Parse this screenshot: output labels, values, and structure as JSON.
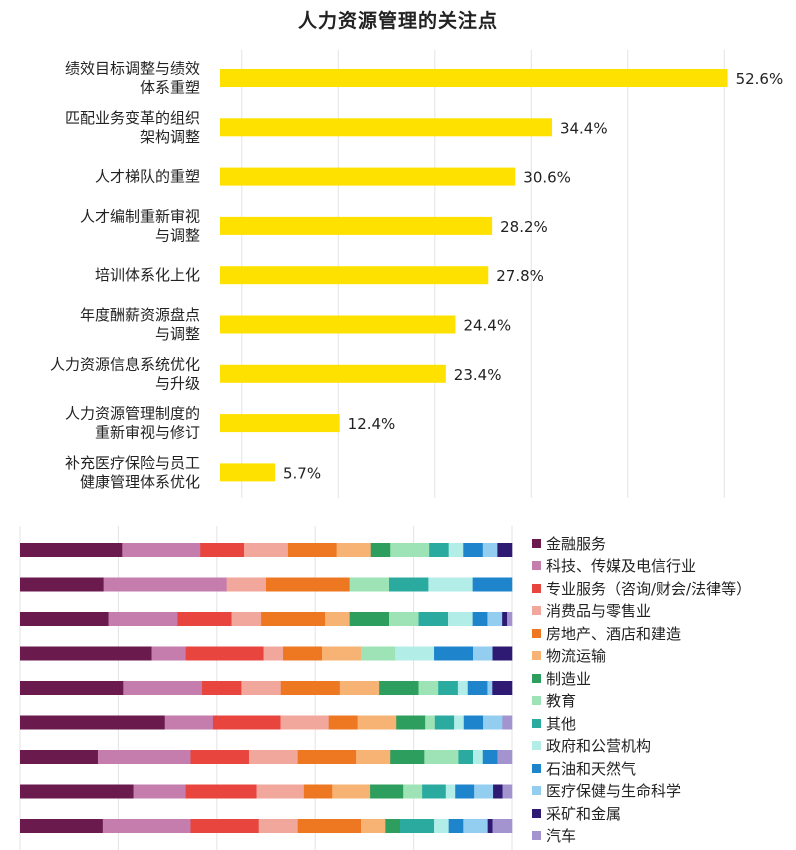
{
  "chart_data": [
    {
      "type": "bar",
      "orientation": "horizontal",
      "title": "人力资源管理的关注点",
      "categories": [
        [
          "绩效目标调整与绩效",
          "体系重塑"
        ],
        [
          "匹配业务变革的组织",
          "架构调整"
        ],
        [
          "人才梯队的重塑"
        ],
        [
          "人才编制重新审视",
          "与调整"
        ],
        [
          "培训体系化上化"
        ],
        [
          "年度酬薪资源盘点",
          "与调整"
        ],
        [
          "人力资源信息系统优化",
          "与升级"
        ],
        [
          "人力资源管理制度的",
          "重新审视与修订"
        ],
        [
          "补充医疗保险与员工",
          "健康管理体系优化"
        ]
      ],
      "values": [
        52.6,
        34.4,
        30.6,
        28.2,
        27.8,
        24.4,
        23.4,
        12.4,
        5.7
      ],
      "value_labels": [
        "52.6%",
        "34.4%",
        "30.6%",
        "28.2%",
        "27.8%",
        "24.4%",
        "23.4%",
        "12.4%",
        "5.7%"
      ],
      "xlim": [
        0,
        60
      ],
      "grid": true,
      "bar_color": "#FFE100"
    },
    {
      "type": "bar",
      "orientation": "horizontal",
      "stacked": true,
      "normalized": true,
      "row_count": 9,
      "legend_position": "right",
      "grid": true,
      "series": [
        {
          "name": "金融服务",
          "color": "#6B1A4E",
          "values": [
            21,
            17,
            18,
            27,
            21,
            30,
            16,
            24,
            17
          ]
        },
        {
          "name": "科技、传媒及电信行业",
          "color": "#C57DAE",
          "values": [
            16,
            25,
            14,
            7,
            16,
            10,
            19,
            11,
            18
          ]
        },
        {
          "name": "专业服务（咨询/财会/法律等）",
          "color": "#E8453E",
          "values": [
            9,
            0,
            11,
            16,
            8,
            14,
            12,
            15,
            14
          ]
        },
        {
          "name": "消费品与零售业",
          "color": "#F2A79C",
          "values": [
            9,
            8,
            6,
            4,
            8,
            10,
            10,
            10,
            8
          ]
        },
        {
          "name": "房地产、酒店和建造",
          "color": "#EE7722",
          "values": [
            10,
            17,
            13,
            8,
            12,
            6,
            12,
            6,
            13
          ]
        },
        {
          "name": "物流运输",
          "color": "#F6B373",
          "values": [
            7,
            0,
            5,
            8,
            8,
            8,
            7,
            8,
            5
          ]
        },
        {
          "name": "制造业",
          "color": "#2E9E5E",
          "values": [
            4,
            0,
            8,
            0,
            8,
            6,
            7,
            7,
            3
          ]
        },
        {
          "name": "教育",
          "color": "#9EE3B6",
          "values": [
            8,
            8,
            6,
            7,
            4,
            2,
            7,
            4,
            0
          ]
        },
        {
          "name": "其他",
          "color": "#2BAAA0",
          "values": [
            4,
            8,
            6,
            0,
            4,
            4,
            3,
            5,
            7
          ]
        },
        {
          "name": "政府和公营机构",
          "color": "#B3EDE8",
          "values": [
            3,
            9,
            5,
            8,
            2,
            2,
            2,
            2,
            3
          ]
        },
        {
          "name": "石油和天然气",
          "color": "#1E84CC",
          "values": [
            4,
            8,
            3,
            8,
            4,
            4,
            3,
            4,
            3
          ]
        },
        {
          "name": "医疗保健与生命科学",
          "color": "#93CDEF",
          "values": [
            3,
            0,
            3,
            4,
            1,
            4,
            0,
            4,
            5
          ]
        },
        {
          "name": "采矿和金属",
          "color": "#2E1A72",
          "values": [
            3,
            0,
            1,
            4,
            4,
            0,
            0,
            2,
            1
          ]
        },
        {
          "name": "汽车",
          "color": "#A393CF",
          "values": [
            0,
            0,
            1,
            0,
            0,
            2,
            3,
            2,
            4
          ]
        }
      ]
    }
  ]
}
